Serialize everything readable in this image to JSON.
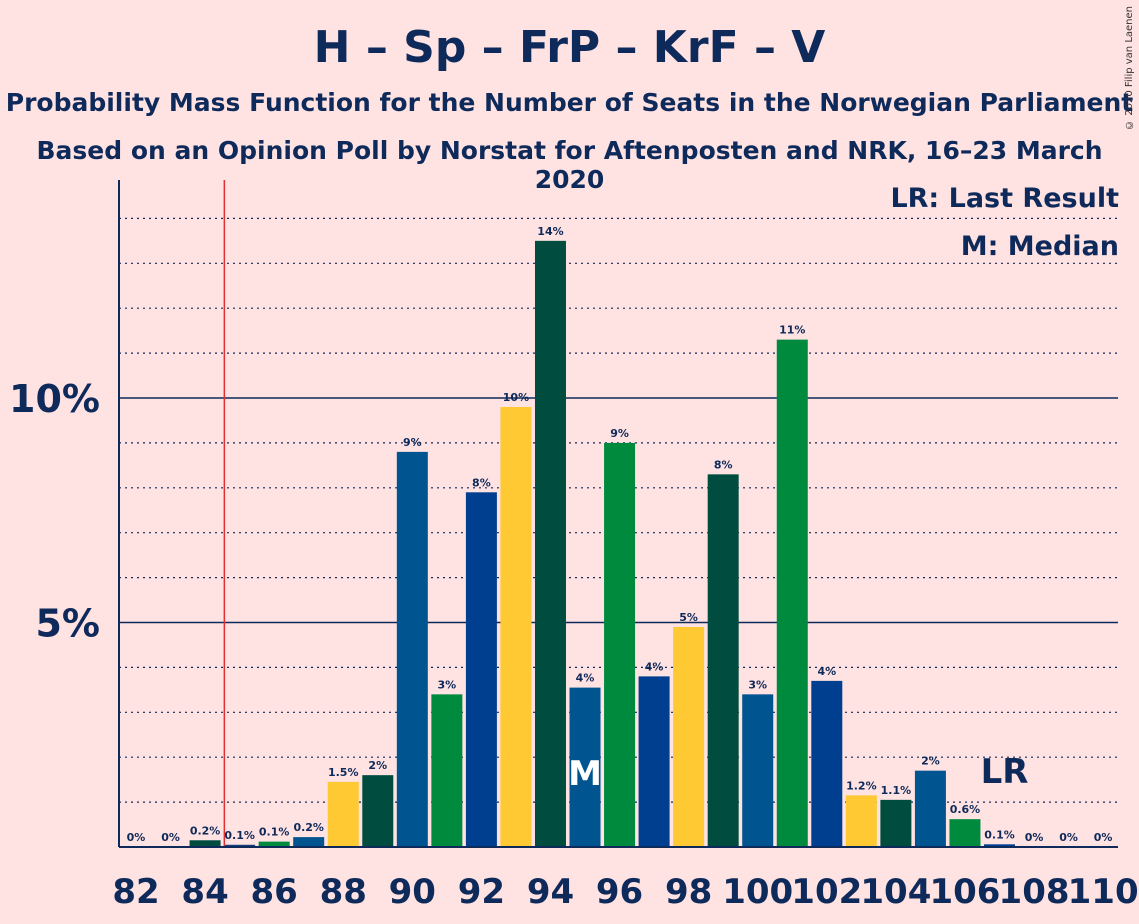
{
  "title": "H – Sp – FrP – KrF – V",
  "subtitle1": "Probability Mass Function for the Number of Seats in the Norwegian Parliament",
  "subtitle2": "Based on an Opinion Poll by Norstat for Aftenposten and NRK, 16–23 March 2020",
  "copyright": "© 2020 Filip van Laenen",
  "legend": {
    "lr": "LR: Last Result",
    "m": "M: Median"
  },
  "colors": {
    "background": "#ffe2e2",
    "text": "#0e2a5a",
    "lastResultLine": "#e03030",
    "grid": "#0e2a5a"
  },
  "chart_data": {
    "type": "bar",
    "x": [
      82,
      83,
      84,
      85,
      86,
      87,
      88,
      89,
      90,
      91,
      92,
      93,
      94,
      95,
      96,
      97,
      98,
      99,
      100,
      101,
      102,
      103,
      104,
      105,
      106,
      107,
      108,
      109,
      110
    ],
    "values": [
      0,
      0,
      0.15,
      0.05,
      0.12,
      0.22,
      1.45,
      1.6,
      8.8,
      3.4,
      7.9,
      9.8,
      13.5,
      3.55,
      9.0,
      3.8,
      4.9,
      8.3,
      3.4,
      11.3,
      3.7,
      1.15,
      1.05,
      1.7,
      0.62,
      0.06,
      0,
      0,
      0
    ],
    "labels": [
      "0%",
      "0%",
      "0.2%",
      "0.1%",
      "0.1%",
      "0.2%",
      "1.5%",
      "2%",
      "9%",
      "3%",
      "8%",
      "10%",
      "14%",
      "4%",
      "9%",
      "4%",
      "5%",
      "8%",
      "3%",
      "11%",
      "4%",
      "1.2%",
      "1.1%",
      "2%",
      "0.6%",
      "0.1%",
      "0%",
      "0%",
      "0%"
    ],
    "bar_colors": [
      "#1a3f7a",
      "#4e8a2e",
      "#004d40",
      "#1a3f7a",
      "#008a3e",
      "#005591",
      "#ffc933",
      "#004d40",
      "#005591",
      "#008a3e",
      "#003f8f",
      "#ffc933",
      "#004d40",
      "#005591",
      "#008a3e",
      "#003f8f",
      "#ffc933",
      "#004d40",
      "#005591",
      "#008a3e",
      "#003f8f",
      "#ffc933",
      "#004d40",
      "#005591",
      "#008a3e",
      "#003f8f",
      "#ffc933",
      "#004d40",
      "#005591"
    ],
    "xticks": [
      82,
      84,
      86,
      88,
      90,
      92,
      94,
      96,
      98,
      100,
      102,
      104,
      106,
      108,
      110
    ],
    "yticks": [
      {
        "value": 5,
        "label": "5%"
      },
      {
        "value": 10,
        "label": "10%"
      }
    ],
    "ylim": [
      0,
      14.8
    ],
    "last_result": 85,
    "median": 95,
    "median_marker": "M",
    "last_result_marker": "LR",
    "grid": true
  }
}
